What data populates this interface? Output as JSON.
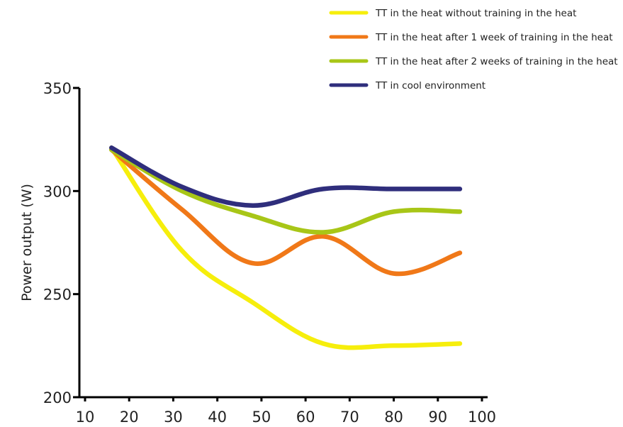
{
  "chart_data": {
    "type": "line",
    "ylabel": "Power output (W)",
    "xlabel": "",
    "xlim": [
      10,
      100
    ],
    "ylim": [
      200,
      350
    ],
    "x_ticks": [
      "10",
      "20",
      "30",
      "40",
      "50",
      "60",
      "70",
      "80",
      "90",
      "100"
    ],
    "y_ticks": [
      "200",
      "250",
      "300",
      "350"
    ],
    "x": [
      16,
      32,
      48,
      64,
      80,
      95
    ],
    "series": [
      {
        "name": "TT in the heat without training in the heat",
        "color": "#f6ee0c",
        "values": [
          321,
          271,
          246,
          226,
          225,
          226
        ]
      },
      {
        "name": "TT in the heat after 1 week of training in the heat",
        "color": "#f07818",
        "values": [
          320,
          291,
          265,
          278,
          260,
          270
        ]
      },
      {
        "name": "TT in the heat after 2 weeks of training in the heat",
        "color": "#a8c617",
        "values": [
          320,
          300,
          288,
          280,
          290,
          290
        ]
      },
      {
        "name": "TT in cool environment",
        "color": "#2f2e7c",
        "values": [
          321,
          302,
          293,
          301,
          301,
          301
        ]
      }
    ],
    "grid": false,
    "legend_position": "top-right"
  }
}
